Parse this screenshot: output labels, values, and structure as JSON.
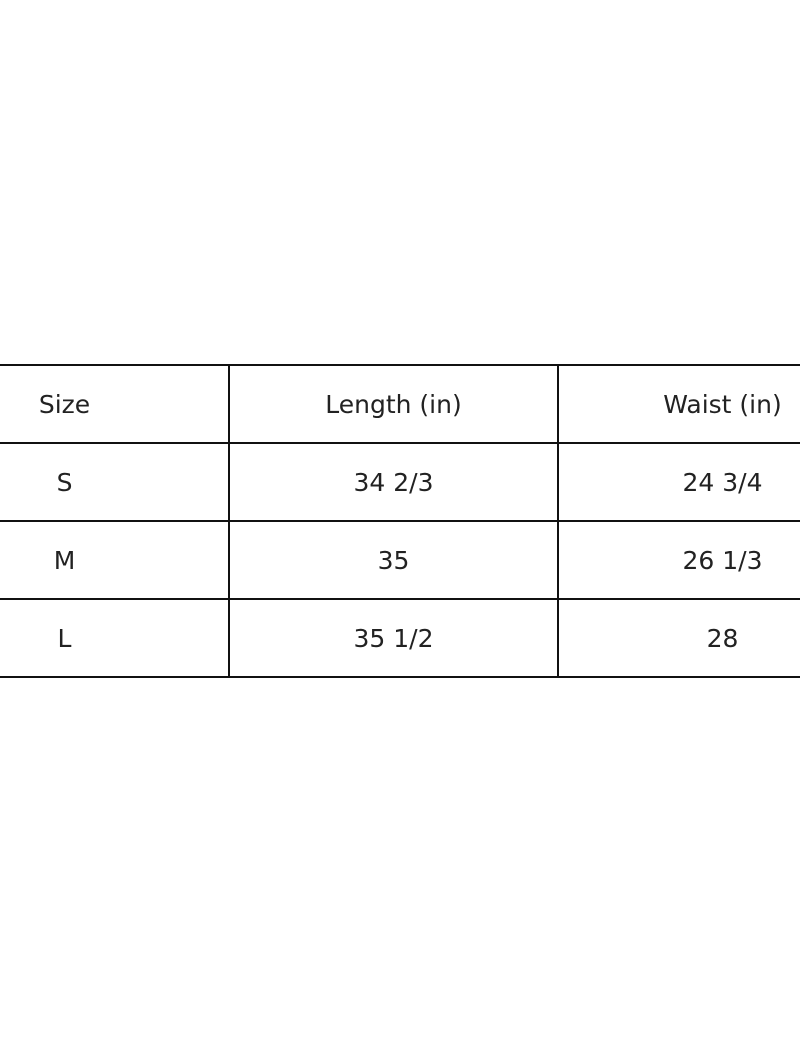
{
  "table": {
    "headers": [
      "Size",
      "Length (in)",
      "Waist (in)"
    ],
    "rows": [
      [
        "S",
        "34 2/3",
        "24 3/4"
      ],
      [
        "M",
        "35",
        "26 1/3"
      ],
      [
        "L",
        "35 1/2",
        "28"
      ]
    ]
  }
}
